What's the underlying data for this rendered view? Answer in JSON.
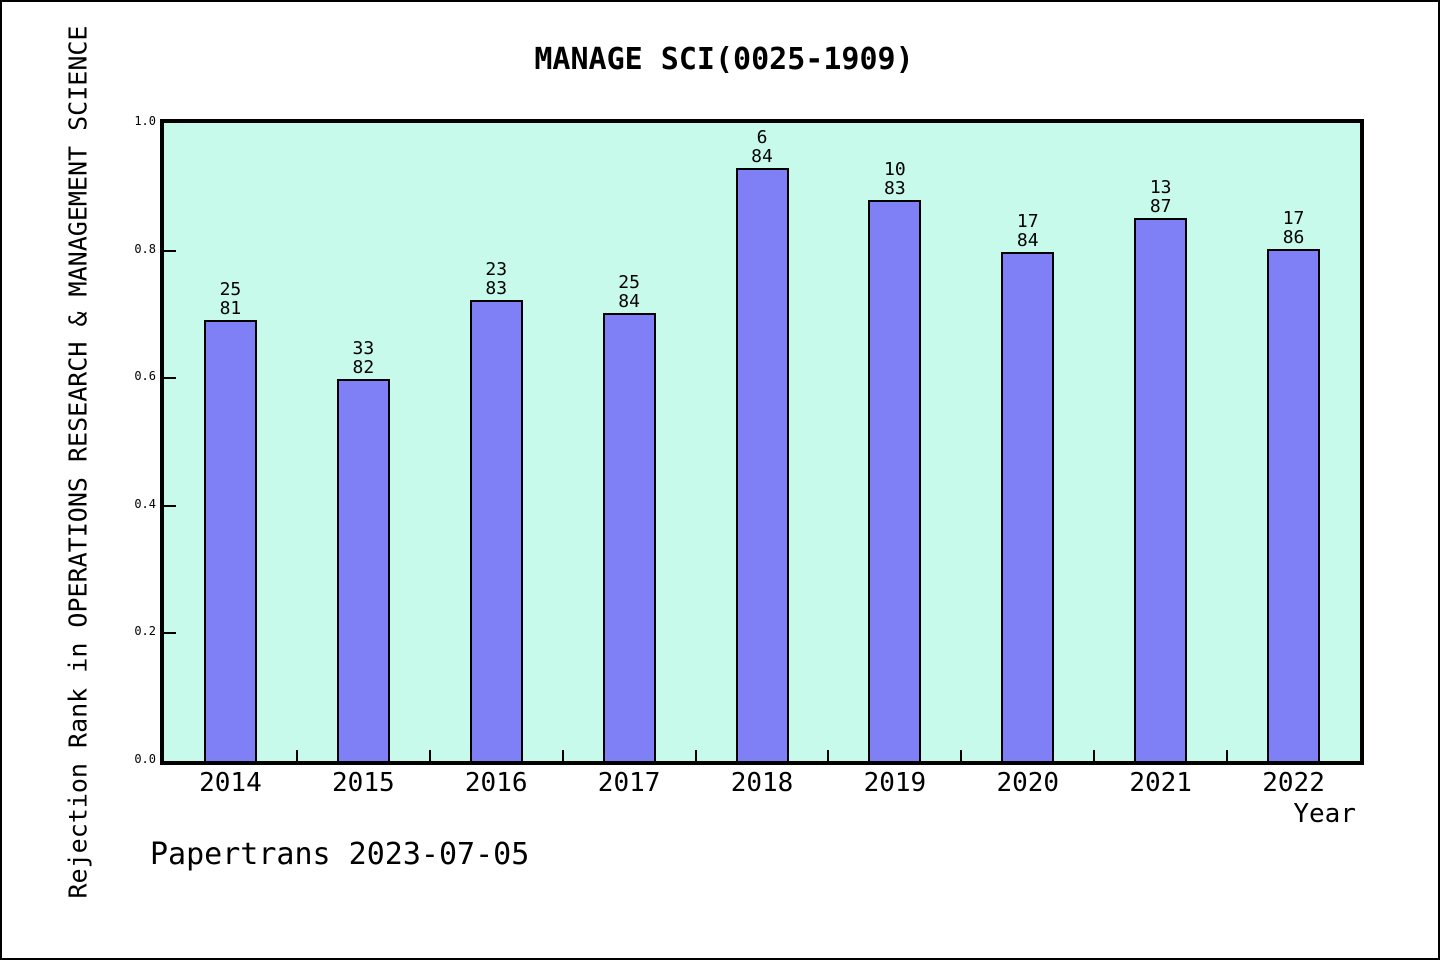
{
  "title": "MANAGE SCI(0025-1909)",
  "y_axis_title": "Rejection Rank in OPERATIONS RESEARCH & MANAGEMENT SCIENCE",
  "x_axis_title": "Year",
  "watermark": "Papertrans 2023-07-05",
  "colors": {
    "bar_fill": "#8080F6",
    "bar_border": "#000000",
    "plot_background": "#C7FAEB",
    "page_background": "#FFFFFF",
    "text": "#000000"
  },
  "chart_data": {
    "type": "bar",
    "title": "MANAGE SCI(0025-1909)",
    "xlabel": "Year",
    "ylabel": "Rejection Rank in OPERATIONS RESEARCH & MANAGEMENT SCIENCE",
    "categories": [
      "2014",
      "2015",
      "2016",
      "2017",
      "2018",
      "2019",
      "2020",
      "2021",
      "2022"
    ],
    "values": [
      0.691,
      0.598,
      0.723,
      0.702,
      0.929,
      0.88,
      0.798,
      0.851,
      0.802
    ],
    "bar_annotations": [
      {
        "rank": "25",
        "total": "81"
      },
      {
        "rank": "33",
        "total": "82"
      },
      {
        "rank": "23",
        "total": "83"
      },
      {
        "rank": "25",
        "total": "84"
      },
      {
        "rank": "6",
        "total": "84"
      },
      {
        "rank": "10",
        "total": "83"
      },
      {
        "rank": "17",
        "total": "84"
      },
      {
        "rank": "13",
        "total": "87"
      },
      {
        "rank": "17",
        "total": "86"
      }
    ],
    "y_tick_labels": [
      "0.0",
      "0.2",
      "0.4",
      "0.6",
      "0.8",
      "1.0"
    ],
    "ylim": [
      0,
      1
    ],
    "grid": false,
    "legend_position": "none"
  }
}
